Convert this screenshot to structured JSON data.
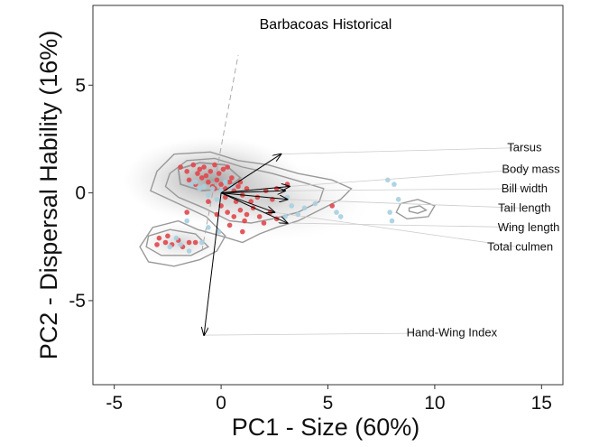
{
  "chart_data": {
    "type": "scatter",
    "title": "Barbacoas Historical",
    "xlabel": "PC1 - Size (60%)",
    "ylabel": "PC2 - Dispersal Hability (16%)",
    "xlim": [
      -6.0,
      16.0
    ],
    "ylim": [
      -8.9,
      8.7
    ],
    "xticks": [
      -5,
      0,
      5,
      10,
      15
    ],
    "yticks": [
      5,
      0,
      -5
    ],
    "grid": false,
    "legend": "none",
    "colors": {
      "red_points": "#e0474c",
      "blue_points": "#a6cfe0",
      "contour": "#999999",
      "arrow": "#000000",
      "label_leader": "#cccccc",
      "dashed_axis": "#aaaaaa"
    },
    "loadings": [
      {
        "name": "Tarsus",
        "x": 2.8,
        "y": 1.8,
        "label_x": 14.2,
        "label_y": 2.1
      },
      {
        "name": "Body mass",
        "x": 3.2,
        "y": 0.3,
        "label_x": 14.5,
        "label_y": 1.1
      },
      {
        "name": "Bill width",
        "x": 3.0,
        "y": 0.1,
        "label_x": 14.2,
        "label_y": 0.2
      },
      {
        "name": "Tail length",
        "x": 3.1,
        "y": -0.3,
        "label_x": 14.2,
        "label_y": -0.7
      },
      {
        "name": "Wing length",
        "x": 3.1,
        "y": -1.4,
        "label_x": 14.4,
        "label_y": -1.6
      },
      {
        "name": "Total culmen",
        "x": 2.5,
        "y": -0.9,
        "label_x": 14.0,
        "label_y": -2.5
      },
      {
        "name": "Hand-Wing Index",
        "x": -0.8,
        "y": -6.6,
        "label_x": 10.8,
        "label_y": -6.5
      }
    ],
    "series": [
      {
        "color": "red",
        "points": [
          [
            -2.9,
            -2.1
          ],
          [
            -2.6,
            -2.3
          ],
          [
            -2.3,
            -2.4
          ],
          [
            -2.0,
            -2.2
          ],
          [
            -1.8,
            -2.5
          ],
          [
            -1.5,
            -2.3
          ],
          [
            -2.5,
            -2.0
          ],
          [
            -1.2,
            -2.3
          ],
          [
            -3.0,
            -2.4
          ],
          [
            -1.9,
            1.2
          ],
          [
            -1.6,
            1.0
          ],
          [
            -1.3,
            1.3
          ],
          [
            -1.0,
            1.1
          ],
          [
            -0.8,
            1.2
          ],
          [
            -0.5,
            1.0
          ],
          [
            -0.3,
            1.3
          ],
          [
            -0.1,
            0.9
          ],
          [
            0.1,
            1.1
          ],
          [
            0.3,
            1.2
          ],
          [
            -1.5,
            0.6
          ],
          [
            -1.2,
            0.4
          ],
          [
            -0.9,
            0.7
          ],
          [
            -0.6,
            0.5
          ],
          [
            -0.4,
            0.3
          ],
          [
            -0.2,
            0.6
          ],
          [
            0.0,
            0.4
          ],
          [
            0.2,
            0.2
          ],
          [
            0.4,
            0.5
          ],
          [
            0.6,
            0.1
          ],
          [
            -1.1,
            0.9
          ],
          [
            -0.7,
            0.8
          ],
          [
            0.5,
            0.7
          ],
          [
            0.8,
            0.3
          ],
          [
            1.0,
            -0.1
          ],
          [
            1.2,
            0.2
          ],
          [
            0.7,
            -0.4
          ],
          [
            0.0,
            -0.6
          ],
          [
            0.3,
            -0.9
          ],
          [
            0.6,
            -1.1
          ],
          [
            0.9,
            -0.8
          ],
          [
            1.2,
            -1.0
          ],
          [
            1.5,
            -0.7
          ],
          [
            1.1,
            -1.3
          ],
          [
            0.4,
            -1.5
          ],
          [
            1.8,
            -1.1
          ],
          [
            2.3,
            -0.9
          ],
          [
            2.6,
            -1.2
          ],
          [
            2.0,
            -1.4
          ],
          [
            1.0,
            -1.8
          ],
          [
            0.2,
            -0.2
          ],
          [
            -0.2,
            -1.0
          ],
          [
            1.4,
            -0.4
          ],
          [
            2.6,
            0.2
          ],
          [
            3.1,
            0.4
          ],
          [
            2.4,
            -0.3
          ],
          [
            5.2,
            -0.6
          ],
          [
            -0.6,
            -0.4
          ],
          [
            -1.6,
            -0.9
          ],
          [
            0.9,
            0.5
          ],
          [
            2.1,
            0.1
          ],
          [
            1.7,
            -0.2
          ],
          [
            -0.3,
            0.2
          ]
        ]
      },
      {
        "color": "blue",
        "points": [
          [
            -1.2,
            0.5
          ],
          [
            -0.8,
            0.3
          ],
          [
            -0.4,
            0.2
          ],
          [
            0.0,
            0.1
          ],
          [
            -0.6,
            -0.1
          ],
          [
            -1.0,
            0.2
          ],
          [
            -1.4,
            0.4
          ],
          [
            0.2,
            0.5
          ],
          [
            -0.2,
            -0.3
          ],
          [
            0.5,
            0.3
          ],
          [
            -1.6,
            -1.3
          ],
          [
            -1.9,
            -2.4
          ],
          [
            -2.1,
            -2.1
          ],
          [
            -1.5,
            -2.7
          ],
          [
            -2.4,
            -2.5
          ],
          [
            -0.9,
            -2.3
          ],
          [
            3.1,
            -0.2
          ],
          [
            3.3,
            -0.6
          ],
          [
            3.6,
            -1.0
          ],
          [
            3.0,
            -1.1
          ],
          [
            3.9,
            -0.7
          ],
          [
            4.4,
            -0.5
          ],
          [
            5.4,
            -0.9
          ],
          [
            5.6,
            -1.1
          ],
          [
            7.8,
            0.6
          ],
          [
            8.1,
            0.4
          ],
          [
            8.3,
            -0.3
          ],
          [
            7.9,
            -0.9
          ],
          [
            8.0,
            -1.3
          ],
          [
            -0.6,
            -1.6
          ],
          [
            -0.1,
            -1.8
          ]
        ]
      }
    ]
  }
}
